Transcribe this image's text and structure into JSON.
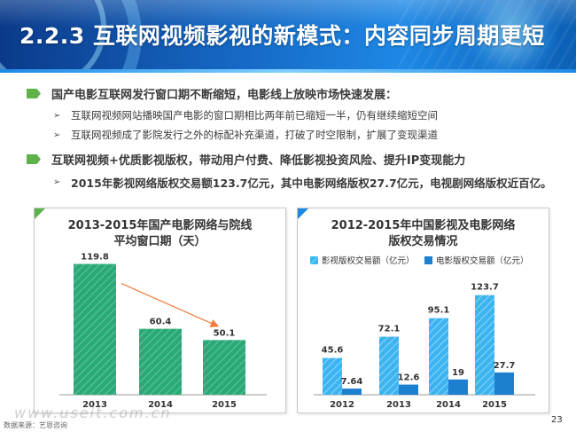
{
  "header": {
    "title": "2.2.3 互联网视频影视的新模式：内容同步周期更短"
  },
  "points": [
    {
      "main": "国产电影互联网发行窗口期不断缩短，电影线上放映市场快速发展：",
      "subs": [
        "互联网视频网站播映国产电影的窗口期相比两年前已缩短一半，仍有继续缩短空间",
        "互联网视频成了影院发行之外的标配补充渠道，打破了时空限制，扩展了变现渠道"
      ]
    },
    {
      "main": "互联网视频+优质影视版权，带动用户付费、降低影视投资风险、提升IP变现能力",
      "subs": [
        "2015年影视网络版权交易额123.7亿元，其中电影网络版权27.7亿元，电视剧网络版权近百亿。"
      ]
    }
  ],
  "colors": {
    "green_bar": "#2aa876",
    "blue_bar_1": "#3cb4f0",
    "blue_bar_2": "#1c7fd0",
    "trend_arrow": "#f07b3a",
    "accent_green": "#5db24a"
  },
  "chart_data": [
    {
      "type": "bar",
      "title_lines": [
        "2013-2015年国产电影网络与院线",
        "平均窗口期（天）"
      ],
      "categories": [
        "2013",
        "2014",
        "2015"
      ],
      "values": [
        119.8,
        60.4,
        50.1
      ],
      "ylim": [
        0,
        130
      ],
      "grid": false,
      "legend": "none",
      "annotation": "decreasing trend arrow from 2013 to 2015"
    },
    {
      "type": "bar",
      "title_lines": [
        "2012-2015年中国影视及电影网络",
        "版权交易情况"
      ],
      "categories": [
        "2012",
        "2013",
        "2014",
        "2015"
      ],
      "series": [
        {
          "name": "影视版权交易额（亿元）",
          "values": [
            45.6,
            72.1,
            95.1,
            123.7
          ]
        },
        {
          "name": "电影版权交易额（亿元）",
          "values": [
            7.64,
            12.6,
            19,
            27.7
          ]
        }
      ],
      "ylim": [
        0,
        130
      ],
      "grid": false,
      "legend": "top"
    }
  ],
  "footer": {
    "source": "数据来源：艺恩咨询",
    "watermark": "www.useit.com.cn",
    "page_number": "23"
  }
}
